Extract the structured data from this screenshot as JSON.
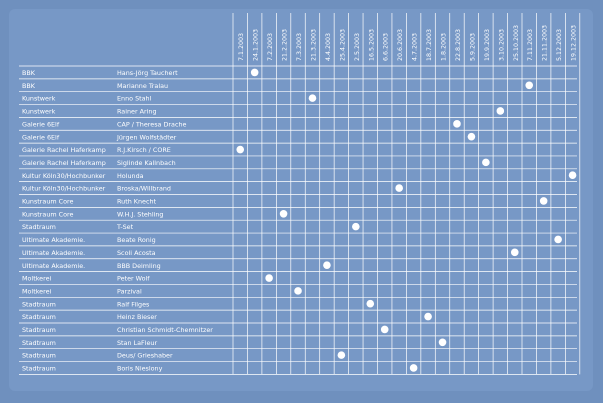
{
  "dates": [
    "7.1.2003",
    "24.1.2003",
    "7.2.2003",
    "21.2.2003",
    "7.3.2003",
    "21.3.2003",
    "4.4.2003",
    "25.4.2003",
    "2.5.2003",
    "16.5.2003",
    "6.6.2003",
    "20.6.2003",
    "4.7.2003",
    "18.7.2003",
    "1.8.2003",
    "22.8.2003",
    "5.9.2003",
    "19.9.2003",
    "3.10.2003",
    "25.10.2003",
    "7.11.2003",
    "21.11.2003",
    "5.12.2003",
    "19.12.2003"
  ],
  "rows": [
    {
      "venue": "BBK",
      "artist": "Hans-Jörg Tauchert",
      "date_index": 1
    },
    {
      "venue": "BBK",
      "artist": "Marianne Tralau",
      "date_index": 20
    },
    {
      "venue": "Kunstwerk",
      "artist": "Enno Stahl",
      "date_index": 5
    },
    {
      "venue": "Kunstwerk",
      "artist": "Rainer Aring",
      "date_index": 18
    },
    {
      "venue": "Galerie 6Elf",
      "artist": "CAP / Theresa Drache",
      "date_index": 15
    },
    {
      "venue": "Galerie 6Elf",
      "artist": "Jürgen Wolfstädter",
      "date_index": 16
    },
    {
      "venue": "Galerie Rachel Haferkamp",
      "artist": "R.J.Kirsch / CORE",
      "date_index": 0
    },
    {
      "venue": "Galerie Rachel Haferkamp",
      "artist": "Siglinde Kallnbach",
      "date_index": 17
    },
    {
      "venue": "Kultur Köln30/Hochbunker",
      "artist": "Holunda",
      "date_index": 23
    },
    {
      "venue": "Kultur Köln30/Hochbunker",
      "artist": "Broska/Willbrand",
      "date_index": 11
    },
    {
      "venue": "Kunstraum Core",
      "artist": "Ruth Knecht",
      "date_index": 21
    },
    {
      "venue": "Kunstraum Core",
      "artist": "W.H.J. Stehling",
      "date_index": 3
    },
    {
      "venue": "Stadtraum",
      "artist": "T-Set",
      "date_index": 8
    },
    {
      "venue": "Ultimate Akademie.",
      "artist": "Beate Ronig",
      "date_index": 22
    },
    {
      "venue": "Ultimate Akademie.",
      "artist": "Scoli Acosta",
      "date_index": 19
    },
    {
      "venue": "Ultimate Akademie.",
      "artist": "BBB Deimling",
      "date_index": 6
    },
    {
      "venue": "Moltkerei",
      "artist": "Peter Wolf",
      "date_index": 2
    },
    {
      "venue": "Moltkerei",
      "artist": "Parzival",
      "date_index": 4
    },
    {
      "venue": "Stadtraum",
      "artist": "Ralf Filges",
      "date_index": 9
    },
    {
      "venue": "Stadtraum",
      "artist": "Heinz Bieser",
      "date_index": 13
    },
    {
      "venue": "Stadtraum",
      "artist": "Christian Schmidt-Chemnitzer",
      "date_index": 10
    },
    {
      "venue": "Stadtraum",
      "artist": "Stan LaFleur",
      "date_index": 14
    },
    {
      "venue": "Stadtraum",
      "artist": "Deus/ Grieshaber",
      "date_index": 7
    },
    {
      "venue": "Stadtraum",
      "artist": "Boris Nieslony",
      "date_index": 12
    }
  ],
  "colors": {
    "background": "#6f90be",
    "panel": "#7798c6",
    "line": "#ffffff",
    "dot": "#ffffff",
    "text": "#ffffff"
  }
}
